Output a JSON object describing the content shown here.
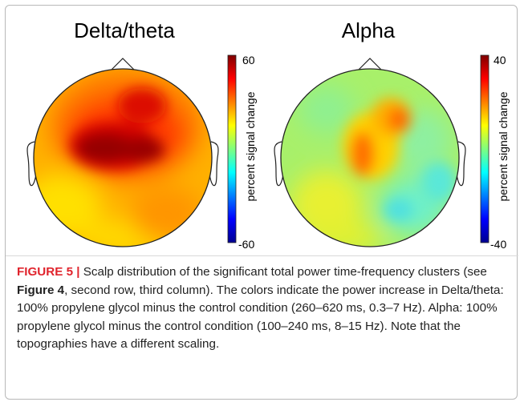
{
  "figure": {
    "panels": [
      {
        "title": "Delta/theta",
        "colorbar": {
          "max_label": "60",
          "min_label": "-60",
          "axis_label": "percent signal change",
          "range": [
            -60,
            60
          ]
        }
      },
      {
        "title": "Alpha",
        "colorbar": {
          "max_label": "40",
          "min_label": "-40",
          "axis_label": "percent signal change",
          "range": [
            -40,
            40
          ]
        }
      }
    ],
    "colormap": [
      "#00008f",
      "#0000ff",
      "#00bfff",
      "#7fff7f",
      "#ffff00",
      "#ff7f00",
      "#ff0000",
      "#7f0000"
    ]
  },
  "caption": {
    "label": "FIGURE 5",
    "separator": " | ",
    "text_1": "Scalp distribution of the significant total power time-frequency clusters (see ",
    "ref": "Figure 4",
    "text_2": ", second row, third column). The colors indicate the power increase in Delta/theta: 100% propylene glycol minus the control condition (260–620 ms, 0.3–7 Hz). Alpha: 100% propylene glycol minus the control condition (100–240 ms, 8–15 Hz). Note that the topographies have a different scaling."
  }
}
